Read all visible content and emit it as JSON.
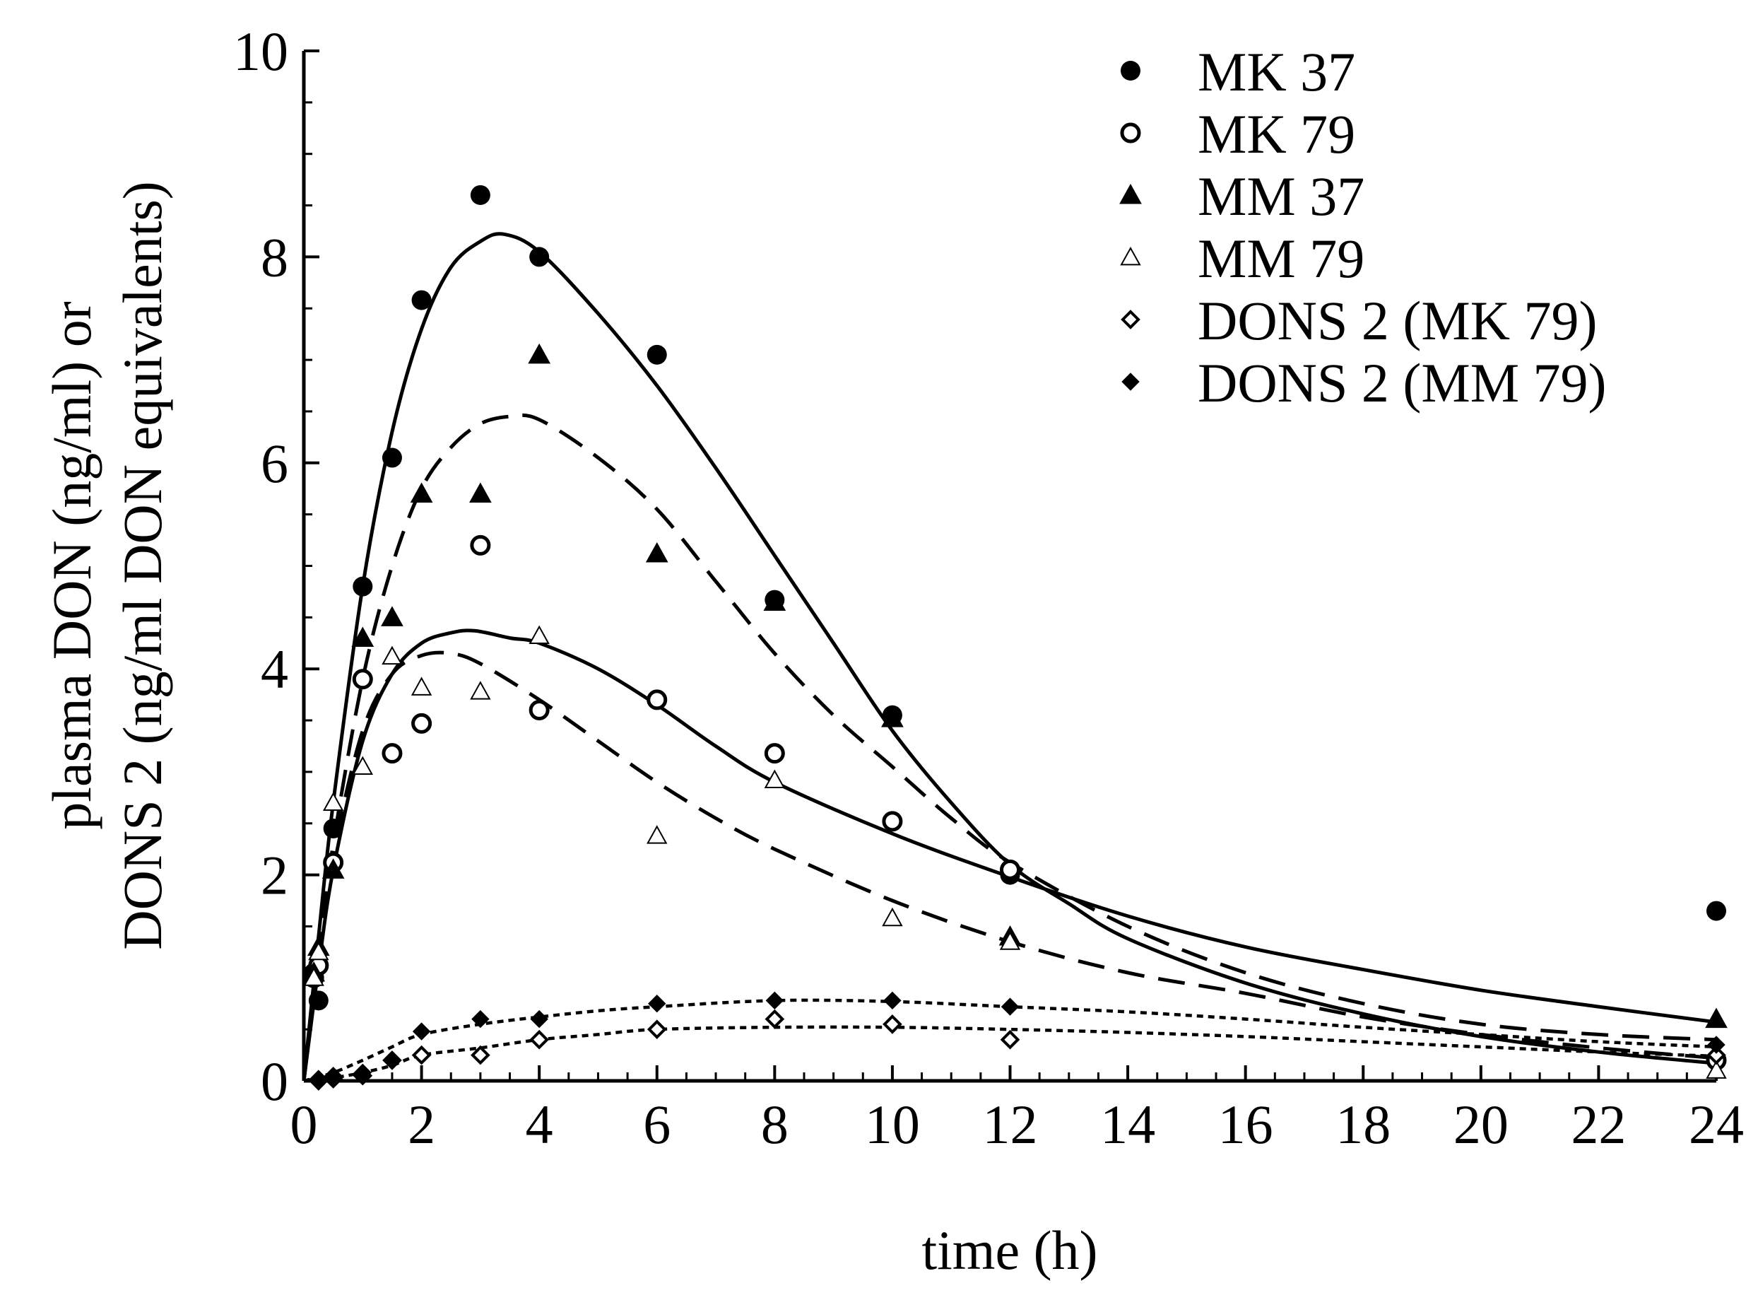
{
  "chart_data": {
    "type": "scatter",
    "title": "",
    "xlabel": "time (h)",
    "ylabel_lines": [
      "plasma DON (ng/ml) or",
      "DONS 2 (ng/ml DON equivalents)"
    ],
    "x_tick_values": [
      0,
      2,
      4,
      6,
      8,
      10,
      12,
      14,
      16,
      18,
      20,
      22,
      24
    ],
    "x_tick_labels": [
      "0",
      "2",
      "4",
      "6",
      "8",
      "10",
      "12",
      "14",
      "16",
      "18",
      "20",
      "22",
      "24"
    ],
    "y_tick_values": [
      0,
      2,
      4,
      6,
      8,
      10
    ],
    "y_tick_labels": [
      "0",
      "2",
      "4",
      "6",
      "8",
      "10"
    ],
    "xlim": [
      0,
      24
    ],
    "ylim": [
      0,
      10
    ],
    "legend_position": "top-right",
    "series": [
      {
        "name": "MK 37",
        "marker": "filled-circle",
        "points": [
          [
            0.17,
            1.05
          ],
          [
            0.25,
            0.78
          ],
          [
            0.5,
            2.45
          ],
          [
            1,
            4.8
          ],
          [
            1.5,
            6.05
          ],
          [
            2,
            7.58
          ],
          [
            3,
            8.6
          ],
          [
            4,
            8.0
          ],
          [
            6,
            7.05
          ],
          [
            8,
            4.67
          ],
          [
            10,
            3.55
          ],
          [
            12,
            2.0
          ],
          [
            24,
            1.65
          ]
        ]
      },
      {
        "name": "MK 79",
        "marker": "open-circle",
        "points": [
          [
            0.17,
            1.0
          ],
          [
            0.25,
            1.12
          ],
          [
            0.5,
            2.12
          ],
          [
            1,
            3.9
          ],
          [
            1.5,
            3.18
          ],
          [
            2,
            3.47
          ],
          [
            3,
            5.2
          ],
          [
            4,
            3.6
          ],
          [
            6,
            3.7
          ],
          [
            8,
            3.18
          ],
          [
            10,
            2.52
          ],
          [
            12,
            2.05
          ],
          [
            24,
            0.2
          ]
        ]
      },
      {
        "name": "MM 37",
        "marker": "filled-triangle",
        "points": [
          [
            0.17,
            1.05
          ],
          [
            0.25,
            1.3
          ],
          [
            0.5,
            2.05
          ],
          [
            1,
            4.3
          ],
          [
            1.5,
            4.5
          ],
          [
            2,
            5.7
          ],
          [
            3,
            5.7
          ],
          [
            4,
            7.05
          ],
          [
            6,
            5.12
          ],
          [
            8,
            4.65
          ],
          [
            10,
            3.52
          ],
          [
            12,
            1.4
          ],
          [
            24,
            0.6
          ]
        ]
      },
      {
        "name": "MM 79",
        "marker": "open-triangle",
        "points": [
          [
            0.17,
            1.0
          ],
          [
            0.25,
            1.25
          ],
          [
            0.5,
            2.7
          ],
          [
            1,
            3.05
          ],
          [
            1.5,
            4.12
          ],
          [
            2,
            3.82
          ],
          [
            3,
            3.78
          ],
          [
            4,
            4.32
          ],
          [
            6,
            2.38
          ],
          [
            8,
            2.92
          ],
          [
            10,
            1.58
          ],
          [
            12,
            1.35
          ],
          [
            24,
            0.1
          ]
        ]
      },
      {
        "name": "DONS 2 (MK 79)",
        "marker": "open-diamond",
        "points": [
          [
            0.25,
            0.0
          ],
          [
            0.5,
            0.02
          ],
          [
            1,
            0.05
          ],
          [
            1.5,
            0.2
          ],
          [
            2,
            0.25
          ],
          [
            3,
            0.25
          ],
          [
            4,
            0.4
          ],
          [
            6,
            0.5
          ],
          [
            8,
            0.6
          ],
          [
            10,
            0.55
          ],
          [
            12,
            0.4
          ],
          [
            24,
            0.25
          ]
        ]
      },
      {
        "name": "DONS 2 (MM 79)",
        "marker": "filled-diamond",
        "points": [
          [
            0.25,
            0.02
          ],
          [
            0.5,
            0.05
          ],
          [
            1,
            0.08
          ],
          [
            1.5,
            0.2
          ],
          [
            2,
            0.48
          ],
          [
            3,
            0.6
          ],
          [
            4,
            0.6
          ],
          [
            6,
            0.75
          ],
          [
            8,
            0.78
          ],
          [
            10,
            0.78
          ],
          [
            12,
            0.72
          ],
          [
            24,
            0.35
          ]
        ]
      }
    ],
    "fitted_curves": [
      {
        "name": "MK 37 fit",
        "style": "solid",
        "points": [
          [
            0,
            0
          ],
          [
            0.25,
            1.4
          ],
          [
            0.5,
            2.7
          ],
          [
            1,
            4.8
          ],
          [
            1.5,
            6.3
          ],
          [
            2,
            7.3
          ],
          [
            2.5,
            7.9
          ],
          [
            3,
            8.15
          ],
          [
            3.4,
            8.22
          ],
          [
            4,
            8.05
          ],
          [
            5,
            7.45
          ],
          [
            6,
            6.75
          ],
          [
            7,
            5.95
          ],
          [
            8,
            5.1
          ],
          [
            9,
            4.25
          ],
          [
            10,
            3.4
          ],
          [
            11,
            2.7
          ],
          [
            12,
            2.1
          ],
          [
            13,
            1.72
          ],
          [
            14,
            1.38
          ],
          [
            16,
            0.95
          ],
          [
            18,
            0.65
          ],
          [
            20,
            0.43
          ],
          [
            22,
            0.28
          ],
          [
            24,
            0.17
          ]
        ]
      },
      {
        "name": "MM 37 fit",
        "style": "dashed",
        "points": [
          [
            0,
            0
          ],
          [
            0.25,
            1.2
          ],
          [
            0.5,
            2.3
          ],
          [
            1,
            3.9
          ],
          [
            1.5,
            5.0
          ],
          [
            2,
            5.75
          ],
          [
            2.5,
            6.15
          ],
          [
            3,
            6.38
          ],
          [
            3.5,
            6.45
          ],
          [
            4,
            6.42
          ],
          [
            5,
            6.05
          ],
          [
            6,
            5.55
          ],
          [
            7,
            4.85
          ],
          [
            8,
            4.15
          ],
          [
            9,
            3.55
          ],
          [
            10,
            3.05
          ],
          [
            11,
            2.55
          ],
          [
            12,
            2.12
          ],
          [
            14,
            1.5
          ],
          [
            16,
            1.05
          ],
          [
            18,
            0.75
          ],
          [
            20,
            0.55
          ],
          [
            22,
            0.45
          ],
          [
            24,
            0.4
          ]
        ]
      },
      {
        "name": "MK 79 fit",
        "style": "solid",
        "points": [
          [
            0,
            0
          ],
          [
            0.25,
            1.1
          ],
          [
            0.5,
            2.05
          ],
          [
            1,
            3.3
          ],
          [
            1.5,
            3.95
          ],
          [
            2,
            4.25
          ],
          [
            2.5,
            4.35
          ],
          [
            2.9,
            4.37
          ],
          [
            3.5,
            4.3
          ],
          [
            4,
            4.25
          ],
          [
            5,
            4.0
          ],
          [
            6,
            3.65
          ],
          [
            7,
            3.25
          ],
          [
            8,
            2.9
          ],
          [
            10,
            2.4
          ],
          [
            12,
            1.98
          ],
          [
            14,
            1.6
          ],
          [
            16,
            1.3
          ],
          [
            18,
            1.08
          ],
          [
            20,
            0.88
          ],
          [
            22,
            0.72
          ],
          [
            24,
            0.57
          ]
        ]
      },
      {
        "name": "MM 79 fit",
        "style": "dashed",
        "points": [
          [
            0,
            0
          ],
          [
            0.25,
            1.2
          ],
          [
            0.5,
            2.2
          ],
          [
            1,
            3.4
          ],
          [
            1.5,
            3.95
          ],
          [
            2,
            4.13
          ],
          [
            2.5,
            4.15
          ],
          [
            3,
            4.05
          ],
          [
            4,
            3.7
          ],
          [
            5,
            3.3
          ],
          [
            6,
            2.9
          ],
          [
            7,
            2.55
          ],
          [
            8,
            2.25
          ],
          [
            10,
            1.75
          ],
          [
            12,
            1.35
          ],
          [
            14,
            1.05
          ],
          [
            16,
            0.85
          ],
          [
            18,
            0.62
          ],
          [
            20,
            0.45
          ],
          [
            22,
            0.32
          ],
          [
            24,
            0.22
          ]
        ]
      },
      {
        "name": "DONS 2 (MM 79) fit",
        "style": "dotted",
        "points": [
          [
            0,
            0
          ],
          [
            0.5,
            0.08
          ],
          [
            1,
            0.2
          ],
          [
            1.5,
            0.33
          ],
          [
            2,
            0.45
          ],
          [
            3,
            0.55
          ],
          [
            4,
            0.62
          ],
          [
            5,
            0.68
          ],
          [
            6,
            0.72
          ],
          [
            8,
            0.78
          ],
          [
            10,
            0.77
          ],
          [
            12,
            0.72
          ],
          [
            14,
            0.67
          ],
          [
            16,
            0.6
          ],
          [
            18,
            0.52
          ],
          [
            20,
            0.45
          ],
          [
            22,
            0.38
          ],
          [
            24,
            0.33
          ]
        ]
      },
      {
        "name": "DONS 2 (MK 79) fit",
        "style": "dotted",
        "points": [
          [
            0,
            0
          ],
          [
            0.5,
            0.03
          ],
          [
            1,
            0.08
          ],
          [
            1.5,
            0.15
          ],
          [
            2,
            0.25
          ],
          [
            3,
            0.32
          ],
          [
            4,
            0.4
          ],
          [
            5,
            0.45
          ],
          [
            6,
            0.5
          ],
          [
            8,
            0.52
          ],
          [
            10,
            0.52
          ],
          [
            12,
            0.5
          ],
          [
            14,
            0.47
          ],
          [
            16,
            0.43
          ],
          [
            18,
            0.38
          ],
          [
            20,
            0.33
          ],
          [
            22,
            0.28
          ],
          [
            24,
            0.24
          ]
        ]
      }
    ]
  },
  "colors": {
    "ink": "#000000",
    "background": "#ffffff"
  }
}
